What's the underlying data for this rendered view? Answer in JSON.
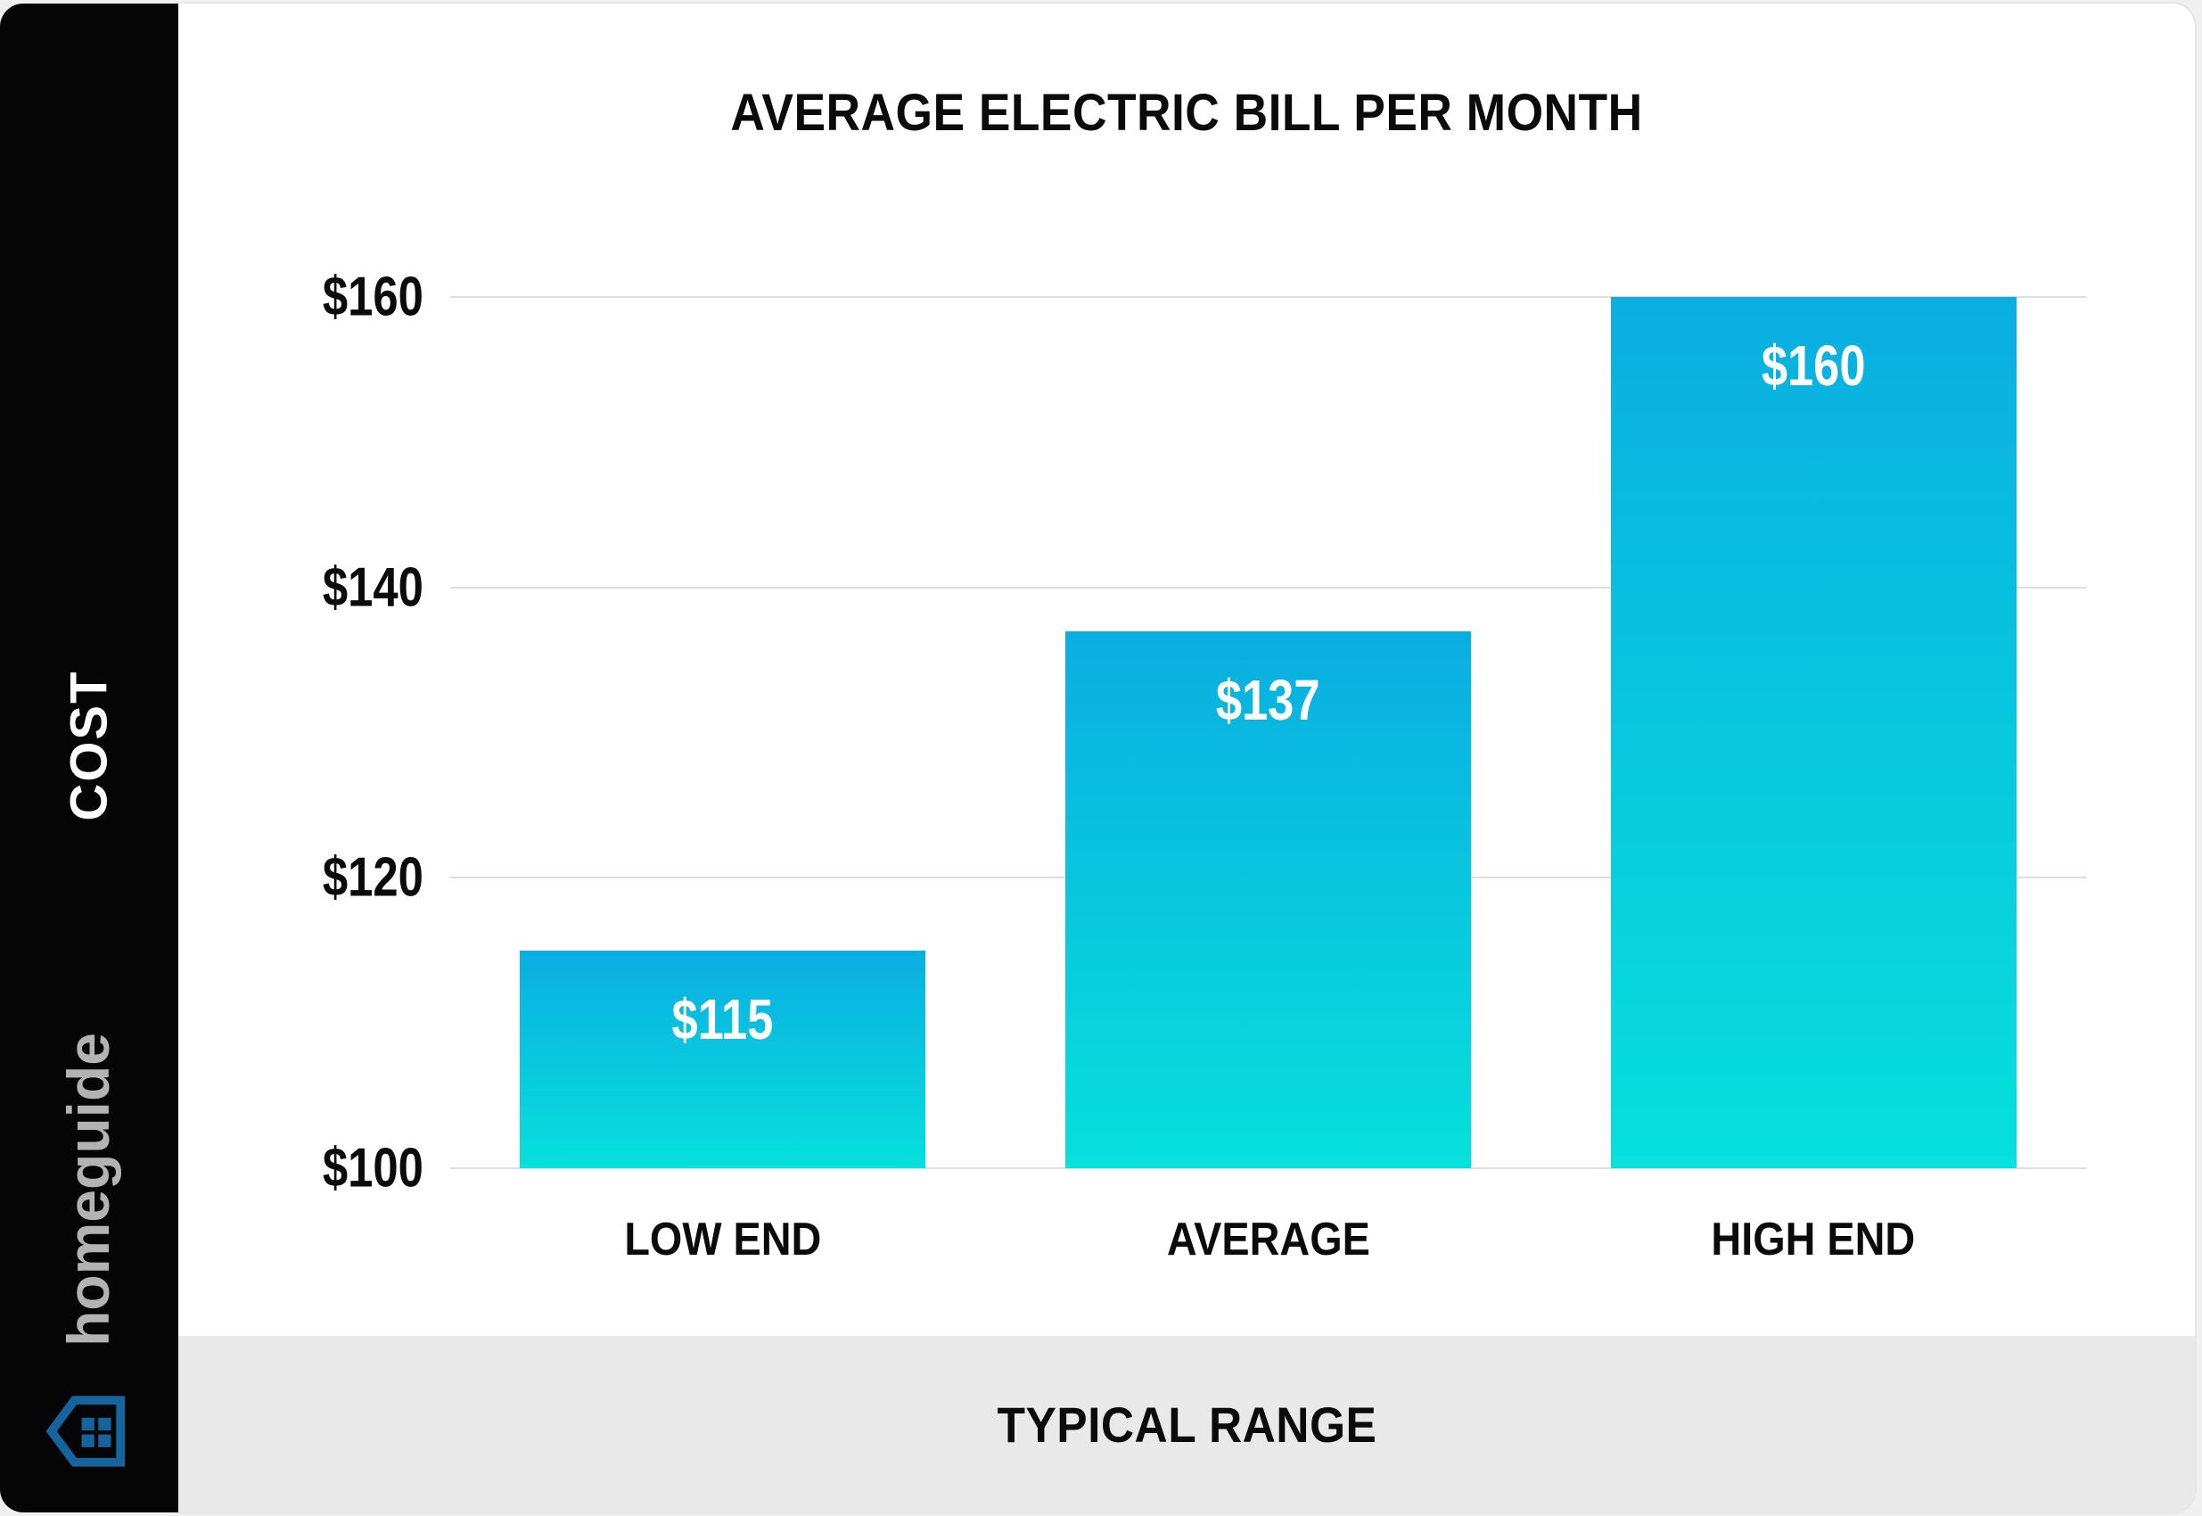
{
  "sidebar": {
    "cost_label": "COST",
    "brand_name": "homeguide",
    "brand_text_color": "#b3b3b3",
    "brand_icon_color": "#14659e"
  },
  "footer": {
    "label": "TYPICAL RANGE"
  },
  "chart_data": {
    "type": "bar",
    "title": "AVERAGE ELECTRIC BILL PER MONTH",
    "categories": [
      "LOW END",
      "AVERAGE",
      "HIGH END"
    ],
    "values": [
      115,
      137,
      160
    ],
    "value_labels": [
      "$115",
      "$137",
      "$160"
    ],
    "xlabel": "TYPICAL RANGE",
    "ylabel": "COST",
    "ylim": [
      100,
      160
    ],
    "yticks": [
      100,
      120,
      140,
      160
    ],
    "ytick_labels": [
      "$100",
      "$120",
      "$140",
      "$160"
    ],
    "grid": true,
    "legend": "none",
    "colors": {
      "bar_gradient_top": "#0aaee1",
      "bar_gradient_bottom": "#07e0dc",
      "gridline": "#dedede",
      "title_text": "#0b0b0b",
      "value_text": "#ffffff",
      "sidebar_bg": "#050505",
      "footer_bg": "#e9e9e9",
      "card_bg": "#ffffff"
    }
  }
}
